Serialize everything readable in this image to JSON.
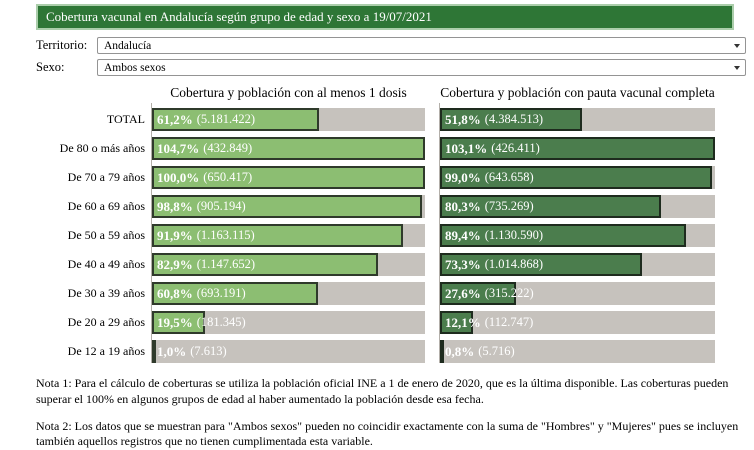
{
  "header": {
    "title": "Cobertura vacunal en Andalucía según grupo de edad y sexo a 19/07/2021",
    "background_color": "#2e7636"
  },
  "filters": {
    "territory_label": "Territorio:",
    "territory_value": "Andalucía",
    "sex_label": "Sexo:",
    "sex_value": "Ambos sexos"
  },
  "chart_data": {
    "type": "bar",
    "orientation": "horizontal",
    "xlim": [
      0,
      100
    ],
    "bar_cap_percent": 100,
    "track_color": "#c6c2bd",
    "categories": [
      "TOTAL",
      "De 80 o más años",
      "De 70 a 79 años",
      "De 60 a 69 años",
      "De 50 a 59 años",
      "De 40 a 49 años",
      "De 30 a 39 años",
      "De 20 a 29 años",
      "De 12 a 19 años"
    ],
    "series": [
      {
        "name": "Cobertura y población con al menos 1 dosis",
        "fill": "#8cbe72",
        "stroke": "#2f3a2b",
        "values": [
          {
            "pct": 61.2,
            "pct_label": "61,2%",
            "pop_label": "(5.181.422)"
          },
          {
            "pct": 104.7,
            "pct_label": "104,7%",
            "pop_label": "(432.849)"
          },
          {
            "pct": 100.0,
            "pct_label": "100,0%",
            "pop_label": "(650.417)"
          },
          {
            "pct": 98.8,
            "pct_label": "98,8%",
            "pop_label": "(905.194)"
          },
          {
            "pct": 91.9,
            "pct_label": "91,9%",
            "pop_label": "(1.163.115)"
          },
          {
            "pct": 82.9,
            "pct_label": "82,9%",
            "pop_label": "(1.147.652)"
          },
          {
            "pct": 60.8,
            "pct_label": "60,8%",
            "pop_label": "(693.191)"
          },
          {
            "pct": 19.5,
            "pct_label": "19,5%",
            "pop_label": "(181.345)"
          },
          {
            "pct": 1.0,
            "pct_label": "1,0%",
            "pop_label": "(7.613)"
          }
        ]
      },
      {
        "name": "Cobertura y población con pauta vacunal completa",
        "fill": "#4b7d4d",
        "stroke": "#1e2b1e",
        "values": [
          {
            "pct": 51.8,
            "pct_label": "51,8%",
            "pop_label": "(4.384.513)"
          },
          {
            "pct": 103.1,
            "pct_label": "103,1%",
            "pop_label": "(426.411)"
          },
          {
            "pct": 99.0,
            "pct_label": "99,0%",
            "pop_label": "(643.658)"
          },
          {
            "pct": 80.3,
            "pct_label": "80,3%",
            "pop_label": "(735.269)"
          },
          {
            "pct": 89.4,
            "pct_label": "89,4%",
            "pop_label": "(1.130.590)"
          },
          {
            "pct": 73.3,
            "pct_label": "73,3%",
            "pop_label": "(1.014.868)"
          },
          {
            "pct": 27.6,
            "pct_label": "27,6%",
            "pop_label": "(315.222)"
          },
          {
            "pct": 12.1,
            "pct_label": "12,1%",
            "pop_label": "(112.747)"
          },
          {
            "pct": 0.8,
            "pct_label": "0,8%",
            "pop_label": "(5.716)"
          }
        ]
      }
    ]
  },
  "notes": {
    "note1": "Nota 1: Para el cálculo de coberturas se utiliza la población oficial INE a 1 de enero de 2020, que es la última disponible. Las coberturas pueden superar el 100% en algunos grupos de edad al haber aumentado la población desde esa fecha.",
    "note2": "Nota 2: Los datos que se muestran para \"Ambos sexos\" pueden no coincidir exactamente con la suma de \"Hombres\" y \"Mujeres\" pues se incluyen también aquellos registros que no tienen cumplimentada esta variable."
  }
}
